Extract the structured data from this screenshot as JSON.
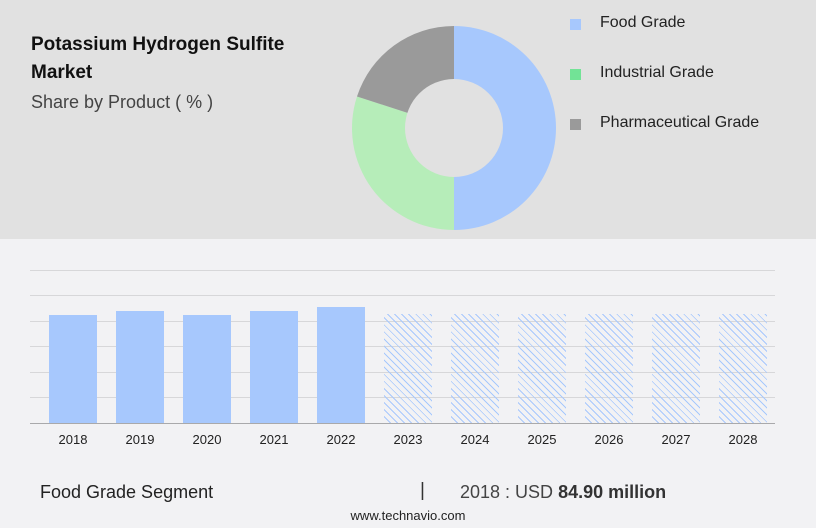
{
  "header": {
    "title": "Potassium Hydrogen Sulfite Market",
    "subtitle": "Share by Product ( % )"
  },
  "legend": [
    {
      "label": "Food Grade",
      "color": "#a7c8fd"
    },
    {
      "label": "Industrial Grade",
      "color": "#72e396"
    },
    {
      "label": "Pharmaceutical Grade",
      "color": "#9a9a9a"
    }
  ],
  "footer": {
    "segment": "Food Grade Segment",
    "separator": "|",
    "value_prefix": "2018 : USD ",
    "value_bold": "84.90 million",
    "url": "www.technavio.com"
  },
  "chart_data": [
    {
      "type": "pie",
      "title": "Potassium Hydrogen Sulfite Market",
      "subtitle": "Share by Product ( % )",
      "donut": true,
      "categories": [
        "Food Grade",
        "Industrial Grade",
        "Pharmaceutical Grade"
      ],
      "values": [
        50,
        30,
        20
      ],
      "colors": [
        "#a7c8fd",
        "#b6edb9",
        "#9a9a9a"
      ],
      "legend_position": "right"
    },
    {
      "type": "bar",
      "title": "Food Grade Segment",
      "categories": [
        "2018",
        "2019",
        "2020",
        "2021",
        "2022",
        "2023",
        "2024",
        "2025",
        "2026",
        "2027",
        "2028"
      ],
      "values": [
        84.9,
        88.0,
        84.9,
        88.0,
        91.0,
        null,
        null,
        null,
        null,
        null,
        null
      ],
      "forecast_years": [
        "2023",
        "2024",
        "2025",
        "2026",
        "2027",
        "2028"
      ],
      "forecast_placeholder_height": 109,
      "xlabel": "",
      "ylabel": "",
      "ylim": [
        0,
        120
      ],
      "grid": true,
      "annotation": "2018 : USD 84.90 million"
    }
  ]
}
